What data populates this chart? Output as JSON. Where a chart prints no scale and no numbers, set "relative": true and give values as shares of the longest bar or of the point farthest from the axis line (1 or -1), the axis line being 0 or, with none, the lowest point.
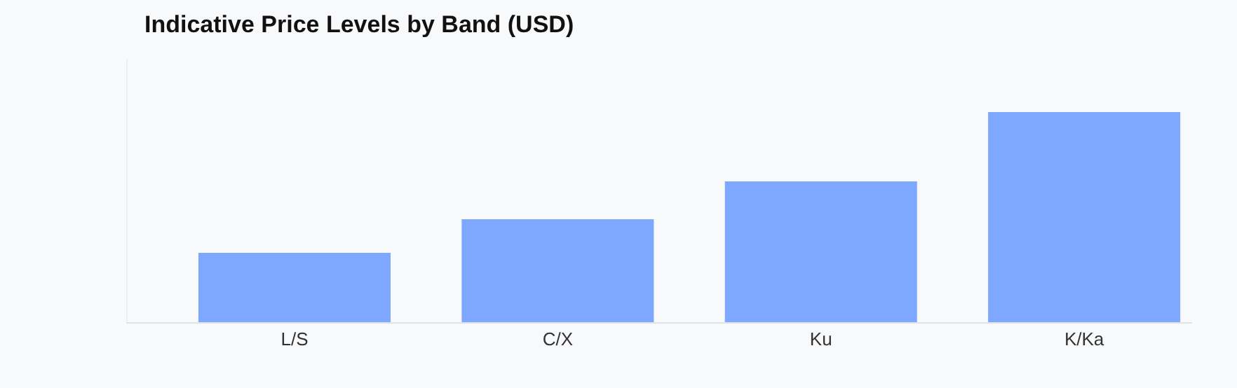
{
  "chart_data": {
    "type": "bar",
    "title": "Indicative Price Levels by Band (USD)",
    "categories": [
      "L/S",
      "C/X",
      "Ku",
      "K/Ka"
    ],
    "values": [
      0.33,
      0.49,
      0.67,
      1
    ],
    "color": "#7ea7ff",
    "relative": true,
    "grid": false,
    "legend": false
  }
}
